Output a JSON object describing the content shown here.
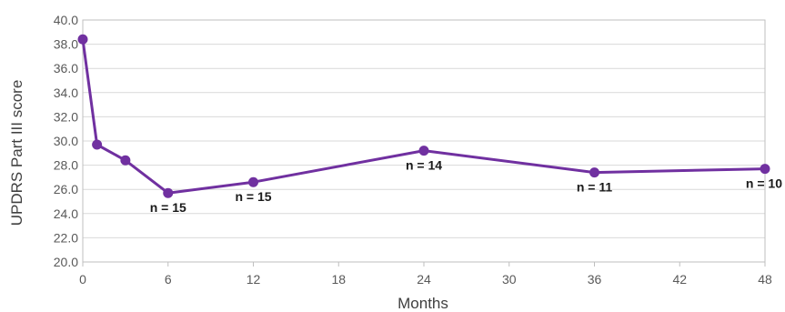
{
  "chart_data": {
    "type": "line",
    "xlabel": "Months",
    "ylabel": "UPDRS Part III score",
    "xlim": [
      0,
      48
    ],
    "ylim": [
      20,
      40
    ],
    "x_ticks": [
      0,
      6,
      12,
      18,
      24,
      30,
      36,
      42,
      48
    ],
    "y_ticks": [
      "20.0",
      "22.0",
      "24.0",
      "26.0",
      "28.0",
      "30.0",
      "32.0",
      "34.0",
      "36.0",
      "38.0",
      "40.0"
    ],
    "grid": "horizontal",
    "legend": "none",
    "colors": {
      "series": "#7030a0",
      "grid": "#d9d9d9",
      "axis": "#bfbfbf"
    },
    "series": [
      {
        "x": [
          0,
          1,
          3,
          6,
          12,
          24,
          36,
          48
        ],
        "y": [
          38.4,
          29.7,
          28.4,
          25.7,
          26.6,
          29.2,
          27.4,
          27.7
        ]
      }
    ],
    "annotations": [
      {
        "x": 6,
        "text": "n = 15"
      },
      {
        "x": 12,
        "text": "n = 15"
      },
      {
        "x": 24,
        "text": "n = 14"
      },
      {
        "x": 36,
        "text": "n = 11"
      },
      {
        "x": 48,
        "text": "n = 10"
      }
    ]
  }
}
